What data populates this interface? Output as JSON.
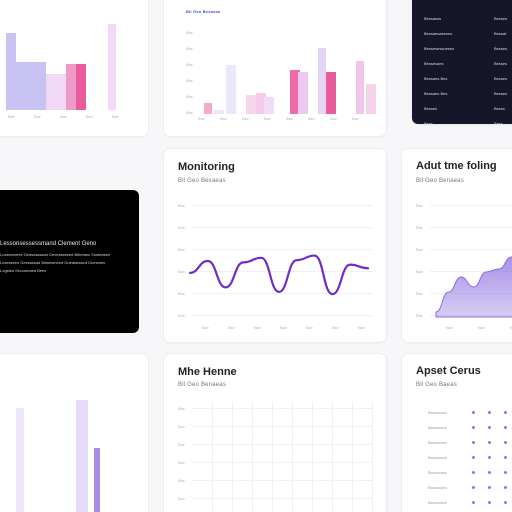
{
  "cards": {
    "monitoring": {
      "title": "Monitoring",
      "subtitle": "Bll Geo Bexaeas"
    },
    "alert": {
      "title": "Adut tme foling",
      "subtitle": "Bll Geo Benaeas"
    },
    "mhe": {
      "title": "Mhe Henne",
      "subtitle": "Bll Geo Benaeas"
    },
    "apset": {
      "title": "Apset Cerus",
      "subtitle": "Bll Geo Baeas"
    },
    "blue_tag": "Bll Geo Bexaeas",
    "black_panel": {
      "heading": "Lessonsessessmand Clement Geno",
      "lines": [
        "Lussesmees Gedsssassad  Geveassesed Bleetaes  Sosteasee",
        "Lesessees Gessassad  Bissesmeed Gueasesaed  Guesmes",
        "Logstes  Seccsmaed Bees"
      ]
    },
    "dark_table": {
      "rows": [
        {
          "left": "Bessasss",
          "right": "Besses"
        },
        {
          "left": "Bessaesaeeses",
          "right": "Bessat"
        },
        {
          "left": "Bessesessoeses",
          "right": "Besses"
        },
        {
          "left": "Bessesaes",
          "right": "Besses"
        },
        {
          "left": "Bessaes Bes",
          "right": "Besses"
        },
        {
          "left": "Bessaes Bes",
          "right": "Besses"
        },
        {
          "left": "Besses",
          "right": "Besss"
        },
        {
          "left": "Bess",
          "right": "Bess"
        }
      ]
    }
  },
  "chart_data": [
    {
      "type": "bar",
      "x_tick_labels": [
        "Bse",
        "Bse",
        "Bse",
        "Bse",
        "Bse"
      ],
      "values": [
        80,
        50,
        50,
        50,
        38,
        38,
        48,
        48,
        90
      ],
      "colors": [
        "#c8c2f2",
        "#c8c2f2",
        "#c8c2f2",
        "#c8c2f2",
        "#f0d8f6",
        "#f0d8f6",
        "#ee9ac8",
        "#e85c9c",
        "#f0d8f6"
      ]
    },
    {
      "type": "bar",
      "x_tick_labels": [
        "Bse",
        "Bse",
        "Bse",
        "Bse",
        "Bse",
        "Bse",
        "Bse",
        "Bse"
      ],
      "values": [
        10,
        4,
        46,
        18,
        20,
        16,
        42,
        40,
        62,
        40,
        50,
        28
      ],
      "colors": [
        "#f6a9cc",
        "#f1e3f8",
        "#ece8fb",
        "#f6d6ec",
        "#f4c9ea",
        "#eedcf8",
        "#ee6aa8",
        "#efc8ee",
        "#e4d4f6",
        "#e85c9c",
        "#f2c6ea",
        "#f6d2ec"
      ]
    },
    {
      "type": "line",
      "y_tick_labels": [
        "Bse",
        "Bse",
        "Bse",
        "Bse",
        "Bse",
        "Bse"
      ],
      "x_tick_labels": [
        "Bse",
        "Bse",
        "Bse",
        "Bse",
        "Bse",
        "Bse",
        "Bse"
      ],
      "values": [
        62,
        88,
        30,
        85,
        95,
        20,
        90,
        100,
        15,
        80,
        72
      ],
      "ylim": [
        0,
        110
      ],
      "color": "#6e2cc9"
    },
    {
      "type": "area",
      "y_tick_labels": [
        "Bse",
        "Bse",
        "Bse",
        "Bse",
        "Bse",
        "Bse"
      ],
      "x_tick_labels": [
        "Bse",
        "Bse",
        "Bse"
      ],
      "values": [
        5,
        25,
        40,
        30,
        45,
        48,
        60,
        58
      ],
      "ylim": [
        0,
        120
      ],
      "color": "#8b6ee0"
    },
    {
      "type": "bar",
      "values": [
        88,
        95,
        55
      ],
      "colors": [
        "#efe6fc",
        "#e6dbfb",
        "#ab8be8"
      ]
    },
    {
      "type": "bar",
      "y_tick_labels": [
        "Bse",
        "Bse",
        "Bse",
        "Bse",
        "Bse",
        "Bse",
        "Bse"
      ],
      "values": [
        6
      ],
      "colors": [
        "#c9b8f3"
      ]
    },
    {
      "type": "scatter",
      "row_labels": [
        "Bsssssses",
        "Bsssssses",
        "Bsssssses",
        "Bsssssses",
        "Bsssssses",
        "Bsssssses",
        "Bsssssses",
        "Bsssssses"
      ],
      "columns": 3,
      "color": "#7b83e6"
    }
  ]
}
